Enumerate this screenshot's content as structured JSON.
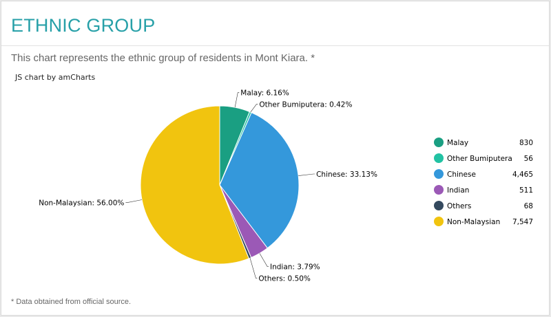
{
  "header": {
    "title": "ETHNIC GROUP",
    "subtitle": "This chart represents the ethnic group of residents in Mont Kiara. *"
  },
  "credit_text": "JS chart by amCharts",
  "footnote": "* Data obtained from official source.",
  "chart_data": {
    "type": "pie",
    "start_angle_deg": 0,
    "direction": "clockwise",
    "slices": [
      {
        "name": "Malay",
        "value": 830,
        "display_value": "830",
        "percent_label": "6.16%",
        "color": "#1a9f82"
      },
      {
        "name": "Other Bumiputera",
        "value": 56,
        "display_value": "56",
        "percent_label": "0.42%",
        "color": "#22c2a3"
      },
      {
        "name": "Chinese",
        "value": 4465,
        "display_value": "4,465",
        "percent_label": "33.13%",
        "color": "#3498db"
      },
      {
        "name": "Indian",
        "value": 511,
        "display_value": "511",
        "percent_label": "3.79%",
        "color": "#9b59b6"
      },
      {
        "name": "Others",
        "value": 68,
        "display_value": "68",
        "percent_label": "0.50%",
        "color": "#34495e"
      },
      {
        "name": "Non-Malaysian",
        "value": 7547,
        "display_value": "7,547",
        "percent_label": "56.00%",
        "color": "#f1c40f"
      }
    ],
    "legend_position": "right"
  }
}
